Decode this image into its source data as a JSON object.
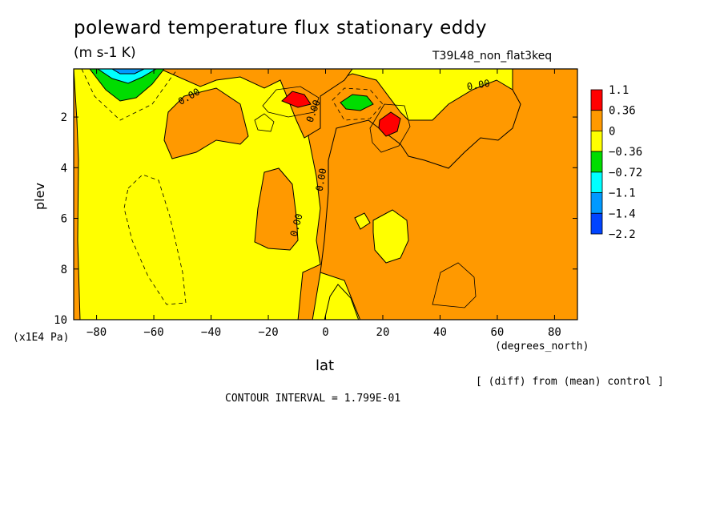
{
  "chart_data": {
    "type": "heatmap",
    "title": "poleward temperature flux stationary eddy",
    "units": "(m s-1 K)",
    "run_label": "T39L48_non_flat3keq",
    "xlabel": "lat",
    "x_units": "(degrees_north)",
    "ylabel": "plev",
    "y_units": "(x1E4 Pa)",
    "xlim": [
      -88,
      88
    ],
    "ylim": [
      10,
      0.1
    ],
    "x_ticks": [
      -80,
      -60,
      -40,
      -20,
      0,
      20,
      40,
      60,
      80
    ],
    "x_tick_labels": [
      "−80",
      "−60",
      "−40",
      "−20",
      "0",
      "20",
      "40",
      "60",
      "80"
    ],
    "y_ticks": [
      2,
      4,
      6,
      8,
      10
    ],
    "y_tick_labels": [
      "2",
      "4",
      "6",
      "8",
      "10"
    ],
    "contour_labels": [
      "0.00",
      "0.00",
      "0.00",
      "0.00",
      "0.00"
    ],
    "levels": [
      1.1,
      0.36,
      0,
      -0.36,
      -0.72,
      -1.1,
      -1.4,
      -2.2
    ],
    "level_labels": [
      "1.1",
      "0.36",
      "0",
      "−0.36",
      "−0.72",
      "−1.1",
      "−1.4",
      "−2.2"
    ],
    "colors": [
      "#ff0000",
      "#ff9900",
      "#ffff00",
      "#00dd00",
      "#00ffff",
      "#0099ff",
      "#0044ff"
    ],
    "footer_note": "[ (diff) from (mean) control ]",
    "contour_interval": "CONTOUR INTERVAL = 1.799E-01"
  }
}
